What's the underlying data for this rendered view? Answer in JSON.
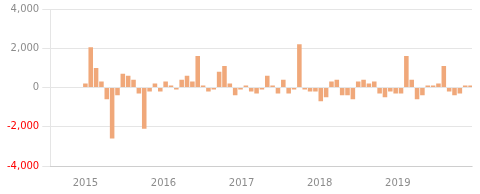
{
  "chart_data": {
    "type": "bar",
    "x": [
      2015,
      2015.068493,
      2015.136986,
      2015.205479,
      2015.273973,
      2015.342466,
      2015.410959,
      2015.479452,
      2015.547945,
      2015.616438,
      2015.684932,
      2015.753425,
      2015.821918,
      2015.890411,
      2015.958904,
      2016.027397,
      2016.09589,
      2016.164384,
      2016.232877,
      2016.30137,
      2016.369863,
      2016.438356,
      2016.506849,
      2016.575342,
      2016.643836,
      2016.712329,
      2016.780822,
      2016.849315,
      2016.917808,
      2016.986301,
      2017.054795,
      2017.123288,
      2017.191781,
      2017.260274,
      2017.328767,
      2017.39726,
      2017.465753,
      2017.534247,
      2017.60274,
      2017.671233,
      2017.739726,
      2017.808219,
      2017.876712,
      2017.945205,
      2018.013699,
      2018.082192,
      2018.150685,
      2018.219178,
      2018.287671,
      2018.356164,
      2018.424658,
      2018.493151,
      2018.561644,
      2018.630137,
      2018.69863,
      2018.767123,
      2018.835616,
      2018.90411,
      2018.972603,
      2019.041096,
      2019.109589,
      2019.178082,
      2019.246575,
      2019.315068,
      2019.383562,
      2019.452055,
      2019.520548,
      2019.589041,
      2019.657534,
      2019.726027,
      2019.794521,
      2019.863014,
      2019.931507
    ],
    "values": [
      200,
      2050,
      1000,
      300,
      -600,
      -2600,
      -400,
      700,
      600,
      400,
      -300,
      -2100,
      -200,
      200,
      -200,
      300,
      100,
      -100,
      400,
      600,
      300,
      1600,
      100,
      -200,
      -100,
      800,
      1100,
      200,
      -400,
      -100,
      100,
      -200,
      -300,
      -100,
      600,
      100,
      -300,
      400,
      -300,
      -100,
      2200,
      -100,
      -200,
      -200,
      -700,
      -500,
      300,
      400,
      -400,
      -400,
      -600,
      300,
      400,
      200,
      300,
      -300,
      -500,
      -200,
      -300,
      -300,
      1600,
      400,
      -600,
      -400,
      100,
      100,
      200,
      1100,
      -200,
      -400,
      -300,
      100,
      100
    ],
    "color": "#f0a87a",
    "xlim": [
      2014.55,
      2019.95
    ],
    "xticks": [
      2015,
      2016,
      2017,
      2018,
      2019
    ],
    "ylim": [
      -4000,
      4000
    ],
    "yticks": [
      {
        "value": -4000,
        "label": "-4,000"
      },
      {
        "value": -2000,
        "label": "-2,000"
      },
      0,
      {
        "value": 2000,
        "label": "2,000"
      },
      {
        "value": 4000,
        "label": "4,000"
      }
    ],
    "grid": "y"
  }
}
